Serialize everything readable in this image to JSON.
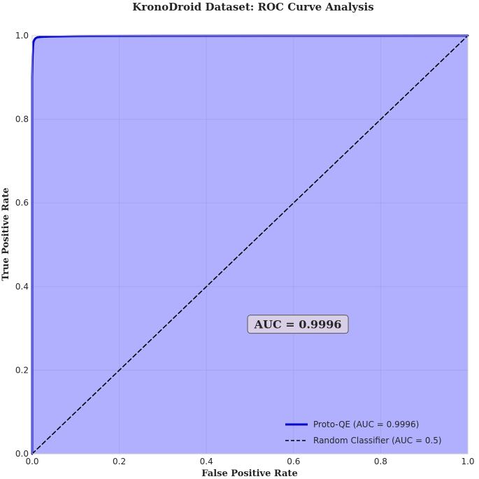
{
  "chart_data": {
    "type": "line",
    "title": "KronoDroid Dataset: ROC Curve Analysis",
    "xlabel": "False Positive Rate",
    "ylabel": "True Positive Rate",
    "xlim": [
      0.0,
      1.0
    ],
    "ylim": [
      0.0,
      1.0
    ],
    "x_ticks": [
      "0.0",
      "0.2",
      "0.4",
      "0.6",
      "0.8",
      "1.0"
    ],
    "y_ticks": [
      "0.0",
      "0.2",
      "0.4",
      "0.6",
      "0.8",
      "1.0"
    ],
    "grid": true,
    "legend_position": "bottom-right",
    "annotation": {
      "text": "AUC = 0.9996",
      "x": 0.61,
      "y": 0.31
    },
    "series": [
      {
        "name": "Proto-QE (AUC = 0.9996)",
        "color": "#0000cc",
        "fill": "#b0b0ff",
        "style": "solid",
        "x": [
          0.0,
          0.0,
          0.001,
          0.002,
          0.003,
          0.005,
          0.008,
          0.012,
          0.02,
          0.04,
          0.1,
          0.3,
          0.6,
          1.0
        ],
        "y": [
          0.0,
          0.9,
          0.95,
          0.975,
          0.985,
          0.99,
          0.994,
          0.996,
          0.997,
          0.998,
          0.999,
          0.9995,
          0.9998,
          1.0
        ]
      },
      {
        "name": "Random Classifier (AUC = 0.5)",
        "color": "#000000",
        "style": "dashed",
        "x": [
          0.0,
          1.0
        ],
        "y": [
          0.0,
          1.0
        ]
      }
    ]
  }
}
